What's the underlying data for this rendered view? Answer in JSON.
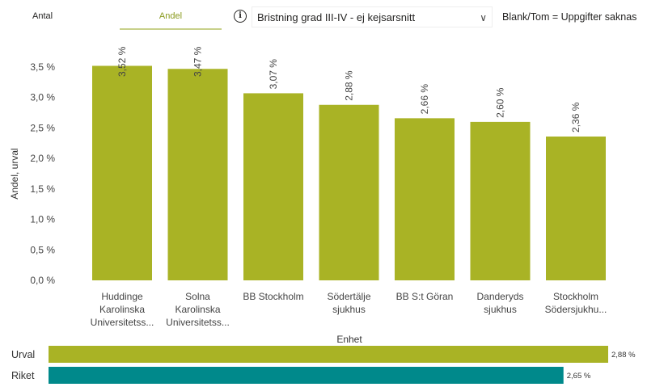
{
  "tabs": [
    {
      "label": "Antal",
      "active": false
    },
    {
      "label": "Andel",
      "active": true
    }
  ],
  "filter": {
    "info_icon": "info-icon",
    "selected": "Bristning grad III-IV - ej kejsarsnitt",
    "chevron_icon": "chevron-down-icon"
  },
  "note": "Blank/Tom = Uppgifter saknas",
  "colors": {
    "urval": "#a9b325",
    "riket": "#00898b",
    "accent": "#8a9a1e"
  },
  "chart_data": [
    {
      "type": "bar",
      "xlabel": "Enhet",
      "ylabel": "Andel, urval",
      "ylim": [
        0,
        3.5
      ],
      "yticks": [
        "0,0 %",
        "0,5 %",
        "1,0 %",
        "1,5 %",
        "2,0 %",
        "2,5 %",
        "3,0 %",
        "3,5 %"
      ],
      "categories": [
        [
          "Huddinge",
          "Karolinska",
          "Universitetss..."
        ],
        [
          "Solna",
          "Karolinska",
          "Universitetss..."
        ],
        [
          "BB Stockholm"
        ],
        [
          "Södertälje",
          "sjukhus"
        ],
        [
          "BB S:t Göran"
        ],
        [
          "Danderyds",
          "sjukhus"
        ],
        [
          "Stockholm",
          "Södersjukhu..."
        ]
      ],
      "values": [
        3.52,
        3.47,
        3.07,
        2.88,
        2.66,
        2.6,
        2.36
      ],
      "labels": [
        "3,52 %",
        "3,47 %",
        "3,07 %",
        "2,88 %",
        "2,66 %",
        "2,60 %",
        "2,36 %"
      ],
      "grid": false
    },
    {
      "type": "bar",
      "orientation": "horizontal",
      "categories": [
        "Urval",
        "Riket"
      ],
      "values": [
        2.88,
        2.65
      ],
      "labels": [
        "2,88 %",
        "2,65 %"
      ]
    }
  ]
}
